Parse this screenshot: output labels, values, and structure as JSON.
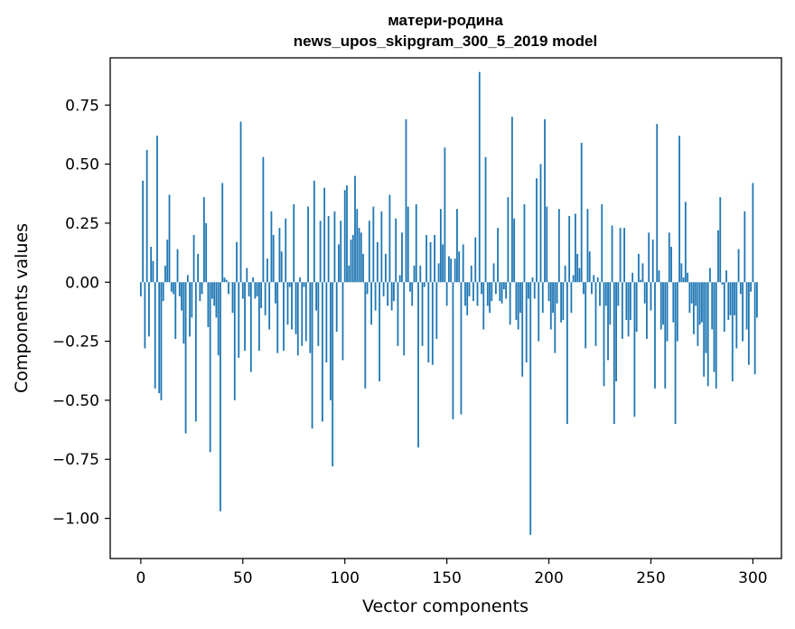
{
  "chart_data": {
    "type": "bar",
    "title": "матери-родина",
    "subtitle": "news_upos_skipgram_300_5_2019 model",
    "xlabel": "Vector components",
    "ylabel": "Components values",
    "xlim": [
      -15,
      314
    ],
    "ylim": [
      -1.17,
      0.95
    ],
    "xticks": [
      0,
      50,
      100,
      150,
      200,
      250,
      300
    ],
    "yticks": [
      0.75,
      0.5,
      0.25,
      0.0,
      -0.25,
      -0.5,
      -0.75,
      -1.0
    ],
    "xtick_labels": [
      "0",
      "50",
      "100",
      "150",
      "200",
      "250",
      "300"
    ],
    "ytick_labels": [
      "0.75",
      "0.50",
      "0.25",
      "0.00",
      "−0.25",
      "−0.50",
      "−0.75",
      "−1.00"
    ],
    "bar_color": "#1f77b4",
    "grid": false,
    "values": [
      -0.06,
      0.43,
      -0.28,
      0.56,
      -0.23,
      0.15,
      0.09,
      -0.45,
      0.62,
      -0.47,
      -0.5,
      -0.08,
      0.07,
      0.18,
      0.37,
      -0.04,
      -0.05,
      -0.24,
      0.14,
      -0.06,
      -0.12,
      -0.26,
      -0.64,
      0.03,
      -0.23,
      -0.15,
      0.2,
      -0.59,
      0.12,
      -0.08,
      -0.05,
      0.36,
      0.25,
      -0.19,
      -0.72,
      -0.07,
      -0.1,
      -0.15,
      -0.31,
      -0.97,
      0.42,
      0.02,
      0.01,
      -0.05,
      0.0,
      -0.13,
      -0.5,
      0.17,
      -0.32,
      0.68,
      -0.07,
      -0.29,
      0.06,
      -0.06,
      -0.38,
      0.02,
      -0.07,
      -0.06,
      -0.29,
      -0.11,
      0.53,
      -0.14,
      0.1,
      -0.2,
      0.3,
      0.2,
      -0.09,
      -0.3,
      0.23,
      0.13,
      -0.29,
      0.27,
      -0.18,
      -0.02,
      -0.2,
      0.33,
      -0.22,
      -0.31,
      0.02,
      -0.27,
      -0.02,
      -0.25,
      0.32,
      -0.3,
      -0.62,
      0.43,
      -0.12,
      -0.27,
      0.26,
      -0.59,
      0.4,
      -0.34,
      0.28,
      -0.5,
      -0.78,
      0.3,
      -0.21,
      0.16,
      0.26,
      -0.33,
      0.39,
      0.41,
      0.07,
      0.18,
      0.2,
      0.45,
      0.31,
      0.23,
      0.21,
      0.12,
      -0.45,
      -0.05,
      0.26,
      -0.18,
      0.32,
      -0.12,
      0.17,
      -0.42,
      0.3,
      -0.06,
      0.12,
      -0.1,
      0.37,
      -0.12,
      -0.08,
      0.27,
      -0.27,
      0.03,
      0.21,
      -0.31,
      0.69,
      0.32,
      -0.04,
      -0.1,
      0.07,
      0.33,
      -0.7,
      0.07,
      -0.27,
      -0.02,
      0.2,
      -0.34,
      0.17,
      -0.35,
      0.2,
      -0.24,
      0.08,
      0.31,
      0.16,
      0.57,
      -0.1,
      0.11,
      0.1,
      -0.58,
      0.1,
      0.31,
      0.13,
      -0.56,
      0.16,
      -0.1,
      -0.14,
      -0.06,
      0.07,
      -0.08,
      0.19,
      -0.1,
      0.89,
      -0.05,
      -0.2,
      0.53,
      -0.1,
      -0.13,
      -0.08,
      0.08,
      -0.05,
      0.23,
      -0.08,
      -0.09,
      -0.03,
      -0.07,
      0.36,
      -0.18,
      0.7,
      0.27,
      -0.16,
      -0.2,
      -0.13,
      -0.4,
      0.33,
      -0.34,
      -0.07,
      -1.07,
      0.02,
      -0.07,
      0.44,
      -0.25,
      0.5,
      -0.13,
      0.69,
      0.32,
      -0.08,
      -0.2,
      -0.13,
      -0.3,
      -0.09,
      0.31,
      -0.17,
      -0.16,
      0.07,
      -0.6,
      0.28,
      -0.13,
      0.03,
      0.29,
      0.12,
      0.06,
      0.59,
      -0.05,
      -0.28,
      0.31,
      0.13,
      -0.05,
      0.03,
      -0.27,
      0.02,
      -0.1,
      0.33,
      -0.44,
      -0.1,
      -0.33,
      -0.18,
      0.24,
      -0.6,
      -0.42,
      -0.1,
      0.23,
      -0.24,
      0.23,
      -0.16,
      -0.23,
      -0.16,
      0.04,
      -0.57,
      -0.21,
      0.12,
      0.01,
      0.08,
      -0.09,
      -0.24,
      0.21,
      -0.12,
      0.18,
      -0.45,
      0.67,
      0.05,
      -0.2,
      -0.18,
      -0.45,
      -0.25,
      0.21,
      0.15,
      -0.17,
      -0.6,
      -0.25,
      0.62,
      0.08,
      0.02,
      0.34,
      0.04,
      -0.13,
      -0.09,
      -0.22,
      -0.1,
      -0.27,
      -0.18,
      -0.17,
      -0.4,
      -0.3,
      -0.44,
      0.06,
      -0.2,
      -0.38,
      -0.45,
      0.22,
      0.36,
      -0.01,
      -0.21,
      0.05,
      -0.16,
      -0.14,
      -0.42,
      -0.14,
      -0.28,
      0.14,
      -0.05,
      -0.25,
      0.3,
      -0.2,
      -0.35,
      -0.04,
      0.42,
      -0.39,
      -0.15
    ]
  }
}
